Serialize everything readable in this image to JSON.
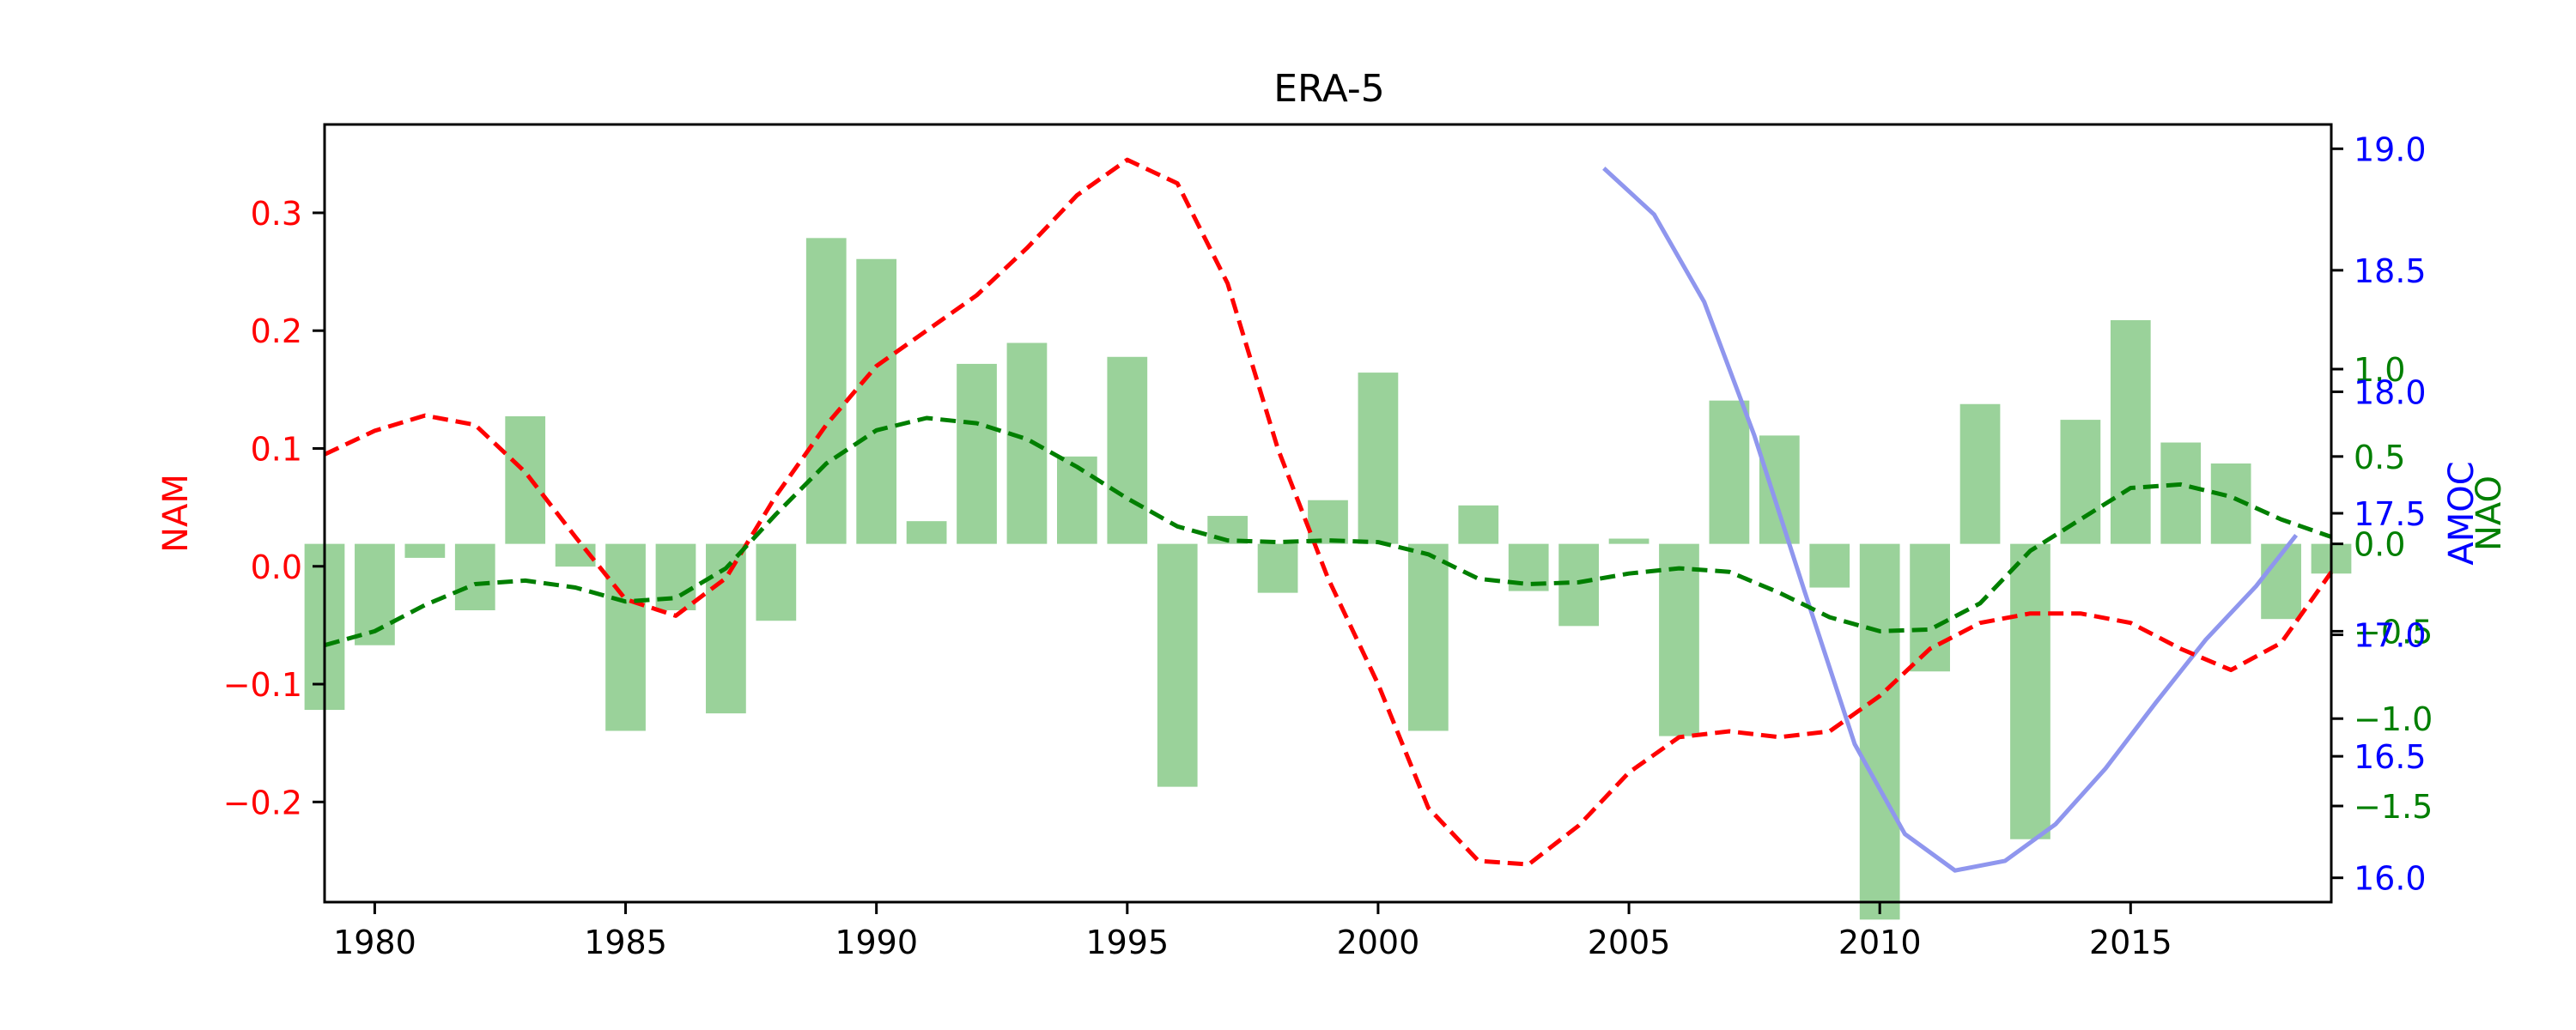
{
  "chart_data": {
    "type": "bar+line",
    "title": "ERA-5",
    "x_axis": {
      "range": [
        1979,
        2019
      ],
      "ticks": [
        1980,
        1985,
        1990,
        1995,
        2000,
        2005,
        2010,
        2015
      ],
      "label": ""
    },
    "nao_bars": {
      "name": "NAO",
      "axis": "right-inner",
      "color": "#2ca02c",
      "years": [
        1979,
        1980,
        1981,
        1982,
        1983,
        1984,
        1985,
        1986,
        1987,
        1988,
        1989,
        1990,
        1991,
        1992,
        1993,
        1994,
        1995,
        1996,
        1997,
        1998,
        1999,
        2000,
        2001,
        2002,
        2003,
        2004,
        2005,
        2006,
        2007,
        2008,
        2009,
        2010,
        2011,
        2012,
        2013,
        2014,
        2015,
        2016,
        2017,
        2018,
        2019
      ],
      "values": [
        -0.95,
        -0.58,
        -0.08,
        -0.38,
        0.73,
        -0.13,
        -1.07,
        -0.38,
        -0.97,
        -0.44,
        1.75,
        1.63,
        0.13,
        1.03,
        1.15,
        0.5,
        1.07,
        -1.39,
        0.16,
        -0.28,
        0.25,
        0.98,
        -1.07,
        0.22,
        -0.27,
        -0.47,
        0.03,
        -1.1,
        0.82,
        0.62,
        -0.25,
        -2.15,
        -0.73,
        0.8,
        -1.69,
        0.71,
        1.28,
        0.58,
        0.46,
        -0.43,
        -0.17
      ]
    },
    "nao_smooth": {
      "name": "NAO smoothed",
      "axis": "right-inner",
      "color": "#007f00",
      "years": [
        1979,
        1980,
        1981,
        1982,
        1983,
        1984,
        1985,
        1986,
        1987,
        1988,
        1989,
        1990,
        1991,
        1992,
        1993,
        1994,
        1995,
        1996,
        1997,
        1998,
        1999,
        2000,
        2001,
        2002,
        2003,
        2004,
        2005,
        2006,
        2007,
        2008,
        2009,
        2010,
        2011,
        2012,
        2013,
        2014,
        2015,
        2016,
        2017,
        2018,
        2019
      ],
      "values": [
        -0.58,
        -0.5,
        -0.35,
        -0.23,
        -0.21,
        -0.25,
        -0.33,
        -0.31,
        -0.14,
        0.17,
        0.46,
        0.65,
        0.72,
        0.69,
        0.6,
        0.44,
        0.26,
        0.1,
        0.02,
        0.01,
        0.02,
        0.01,
        -0.06,
        -0.2,
        -0.23,
        -0.22,
        -0.17,
        -0.14,
        -0.16,
        -0.28,
        -0.42,
        -0.5,
        -0.49,
        -0.34,
        -0.04,
        0.14,
        0.32,
        0.34,
        0.27,
        0.14,
        0.04
      ]
    },
    "nam": {
      "name": "NAM",
      "axis": "left",
      "color": "#ff0000",
      "years": [
        1979,
        1980,
        1981,
        1982,
        1983,
        1984,
        1985,
        1986,
        1987,
        1988,
        1989,
        1990,
        1991,
        1992,
        1993,
        1994,
        1995,
        1996,
        1997,
        1998,
        1999,
        2000,
        2001,
        2002,
        2003,
        2004,
        2005,
        2006,
        2007,
        2008,
        2009,
        2010,
        2011,
        2012,
        2013,
        2014,
        2015,
        2016,
        2017,
        2018,
        2019
      ],
      "values": [
        0.095,
        0.115,
        0.128,
        0.12,
        0.08,
        0.025,
        -0.028,
        -0.042,
        -0.01,
        0.06,
        0.12,
        0.17,
        0.2,
        0.23,
        0.27,
        0.315,
        0.345,
        0.325,
        0.24,
        0.1,
        -0.01,
        -0.1,
        -0.205,
        -0.25,
        -0.253,
        -0.22,
        -0.175,
        -0.145,
        -0.14,
        -0.145,
        -0.14,
        -0.11,
        -0.07,
        -0.048,
        -0.04,
        -0.04,
        -0.048,
        -0.07,
        -0.088,
        -0.065,
        -0.005
      ]
    },
    "amoc": {
      "name": "AMOC",
      "axis": "right-outer",
      "color": "#8f96ee",
      "years": [
        2004.5,
        2005.5,
        2006.5,
        2007.5,
        2008.5,
        2009.5,
        2010.5,
        2011.5,
        2012.5,
        2013.5,
        2014.5,
        2015.5,
        2016.5,
        2017.5,
        2018.3
      ],
      "values": [
        18.92,
        18.73,
        18.37,
        17.82,
        17.18,
        16.55,
        16.18,
        16.03,
        16.07,
        16.22,
        16.45,
        16.72,
        16.98,
        17.2,
        17.41
      ]
    },
    "axes": {
      "left": {
        "label": "NAM",
        "range": [
          -0.285,
          0.375
        ],
        "ticks": [
          -0.2,
          -0.1,
          0.0,
          0.1,
          0.2,
          0.3
        ],
        "tick_labels": [
          "−0.2",
          "−0.1",
          "0.0",
          "0.1",
          "0.2",
          "0.3"
        ],
        "color": "#ff0000"
      },
      "right_inner": {
        "label": "NAO",
        "range": [
          -2.05,
          2.4
        ],
        "ticks": [
          -1.5,
          -1.0,
          -0.5,
          0.0,
          0.5,
          1.0
        ],
        "tick_labels": [
          "−1.5",
          "−1.0",
          "−0.5",
          "0.0",
          "0.5",
          "1.0"
        ],
        "color": "#007f00"
      },
      "right_outer": {
        "label": "AMOC",
        "range": [
          15.9,
          19.1
        ],
        "ticks": [
          16.0,
          16.5,
          17.0,
          17.5,
          18.0,
          18.5,
          19.0
        ],
        "tick_labels": [
          "16.0",
          "16.5",
          "17.0",
          "17.5",
          "18.0",
          "18.5",
          "19.0"
        ],
        "color": "#0000ff"
      }
    },
    "grid": false,
    "legend": "none"
  }
}
